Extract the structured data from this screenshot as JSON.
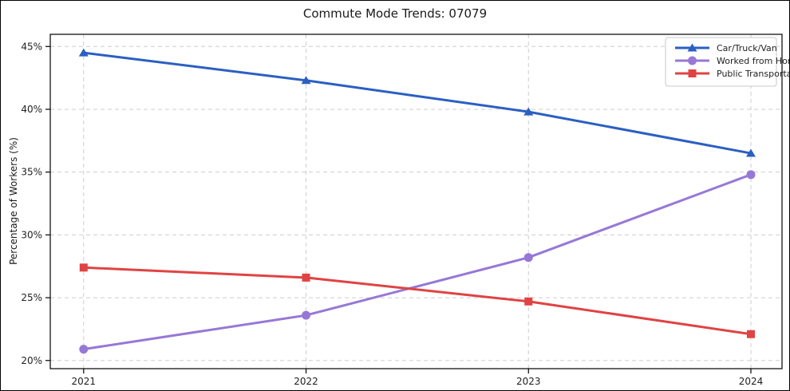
{
  "figure": {
    "title": "Commute Mode Trends: 07079",
    "ylabel": "Percentage of Workers (%)"
  },
  "chart_data": {
    "type": "line",
    "title": "Commute Mode Trends: 07079",
    "xlabel": "",
    "ylabel": "Percentage of Workers (%)",
    "x": [
      2021,
      2022,
      2023,
      2024
    ],
    "x_tick_labels": [
      "2021",
      "2022",
      "2023",
      "2024"
    ],
    "yticks": [
      20,
      25,
      30,
      35,
      40,
      45
    ],
    "ytick_suffix": "%",
    "xlim": [
      2020.85,
      2024.14
    ],
    "ylim": [
      19.35,
      45.97
    ],
    "grid": true,
    "grid_style": "dashed",
    "legend_position": "upper right",
    "series": [
      {
        "name": "Car/Truck/Van",
        "color": "#2b5fc2",
        "marker": "triangle",
        "values": [
          44.5,
          42.3,
          39.8,
          36.5
        ]
      },
      {
        "name": "Worked from Home",
        "color": "#9678d6",
        "marker": "circle",
        "values": [
          20.9,
          23.6,
          28.2,
          34.8
        ]
      },
      {
        "name": "Public Transportation",
        "color": "#e04343",
        "marker": "square",
        "values": [
          27.4,
          26.6,
          24.7,
          22.1
        ]
      }
    ],
    "colors": {
      "grid": "#cdcdcd",
      "spine": "#000000",
      "tick_label": "#1f1f1f",
      "legend_border": "#c9c9c9",
      "legend_bg": "#ffffff"
    }
  }
}
